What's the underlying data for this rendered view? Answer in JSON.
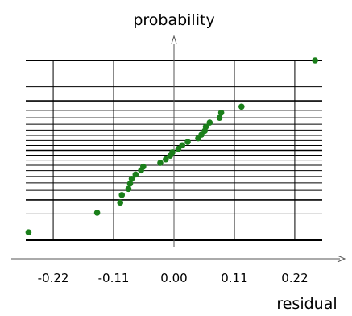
{
  "chart_data": {
    "type": "scatter",
    "title": "",
    "ylabel": "probability",
    "xlabel": "residual",
    "x_ticks": [
      -0.22,
      -0.11,
      0.0,
      0.11,
      0.22
    ],
    "x_tick_labels": [
      "-0.22",
      "-0.11",
      "0.00",
      "0.11",
      "0.22"
    ],
    "xlim": [
      -0.27,
      0.27
    ],
    "y_scale": "normal probability",
    "grid": true,
    "color": "#1a7f1a",
    "series": [
      {
        "x": [
          -0.265,
          -0.14,
          -0.098,
          -0.095,
          -0.083,
          -0.08,
          -0.077,
          -0.07,
          -0.06,
          -0.056,
          -0.025,
          -0.015,
          -0.007,
          -0.003,
          0.008,
          0.015,
          0.025,
          0.044,
          0.05,
          0.056,
          0.058,
          0.065,
          0.083,
          0.086,
          0.123,
          0.257
        ],
        "y": [
          0.017,
          0.053,
          0.088,
          0.124,
          0.159,
          0.195,
          0.231,
          0.266,
          0.302,
          0.337,
          0.373,
          0.408,
          0.444,
          0.48,
          0.515,
          0.551,
          0.586,
          0.622,
          0.657,
          0.693,
          0.729,
          0.764,
          0.8,
          0.835,
          0.871,
          0.995
        ]
      }
    ]
  }
}
